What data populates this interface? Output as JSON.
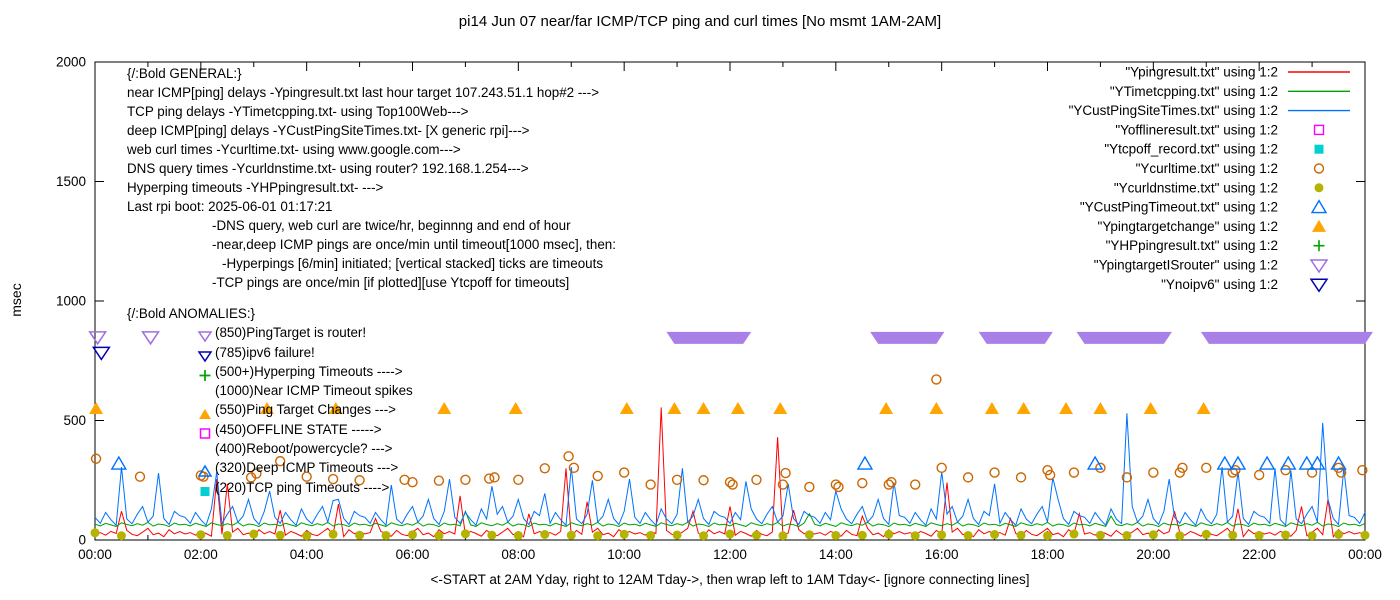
{
  "title": "pi14 Jun 07  near/far ICMP/TCP ping and curl times [No msmt 1AM-2AM]",
  "ylabel": "msec",
  "xlabel": "<-START at 2AM Yday, right to 12AM Tday->, then wrap left to 1AM Tday<- [ignore connecting lines]",
  "axis": {
    "y_ticks": [
      0,
      500,
      1000,
      1500,
      2000
    ],
    "x_tick_labels": [
      "00:00",
      "02:00",
      "04:00",
      "06:00",
      "08:00",
      "10:00",
      "12:00",
      "14:00",
      "16:00",
      "18:00",
      "20:00",
      "22:00",
      "00:00"
    ]
  },
  "legend": [
    {
      "label": "\"Ypingresult.txt\" using 1:2",
      "marker": "line",
      "color": "#ff0000"
    },
    {
      "label": "\"YTimetcpping.txt\" using 1:2",
      "marker": "line",
      "color": "#00a000"
    },
    {
      "label": "\"YCustPingSiteTimes.txt\" using 1:2",
      "marker": "line",
      "color": "#0072ff"
    },
    {
      "label": "\"Yofflineresult.txt\" using 1:2",
      "marker": "square-open",
      "color": "#ff00ff"
    },
    {
      "label": "\"Ytcpoff_record.txt\" using 1:2",
      "marker": "square-filled",
      "color": "#00d0d0"
    },
    {
      "label": "\"Ycurltime.txt\" using 1:2",
      "marker": "circle-open",
      "color": "#cc6600"
    },
    {
      "label": "\"Ycurldnstime.txt\" using 1:2",
      "marker": "circle-filled",
      "color": "#b3b300"
    },
    {
      "label": "\"YCustPingTimeout.txt\" using 1:2",
      "marker": "tri-up-open",
      "color": "#0072ff"
    },
    {
      "label": "\"Ypingtargetchange\" using 1:2",
      "marker": "tri-up-filled",
      "color": "#ffa500"
    },
    {
      "label": "\"YHPpingresult.txt\" using 1:2",
      "marker": "plus",
      "color": "#00a000"
    },
    {
      "label": "\"YpingtargetISrouter\" using 1:2",
      "marker": "tri-down-open",
      "color": "#a06ee0"
    },
    {
      "label": "\"Ynoipv6\" using 1:2",
      "marker": "tri-down-open",
      "color": "#0000b0"
    }
  ],
  "general": {
    "header": "{/:Bold GENERAL:}",
    "lines": [
      {
        "text": "near ICMP[ping] delays -Ypingresult.txt last hour target 107.243.51.1 hop#2 --->",
        "indent": 0
      },
      {
        "text": "TCP ping delays -YTimetcpping.txt- using Top100Web--->",
        "indent": 0
      },
      {
        "text": "deep ICMP[ping] delays -YCustPingSiteTimes.txt- [X generic rpi]--->",
        "indent": 0
      },
      {
        "text": "web curl times -Ycurltime.txt- using www.google.com--->",
        "indent": 0
      },
      {
        "text": "DNS query times -Ycurldnstime.txt- using router? 192.168.1.254--->",
        "indent": 0
      },
      {
        "text": "Hyperping timeouts -YHPpingresult.txt- --->",
        "indent": 0
      },
      {
        "text": "Last rpi boot: 2025-06-01 01:17:21",
        "indent": 0
      },
      {
        "text": "-DNS query, web curl are twice/hr, beginnng and end of hour",
        "indent": 85
      },
      {
        "text": "-near,deep ICMP pings are once/min until timeout[1000 msec], then:",
        "indent": 85
      },
      {
        "text": "-Hyperpings [6/min] initiated; [vertical stacked] ticks are timeouts",
        "indent": 95
      },
      {
        "text": "-TCP pings are once/min [if plotted][use Ytcpoff for timeouts]",
        "indent": 85
      }
    ]
  },
  "anomalies": {
    "header": "{/:Bold ANOMALIES:}",
    "items": [
      {
        "marker": "tri-down-open",
        "color": "#a06ee0",
        "text": "(850)PingTarget is router!"
      },
      {
        "marker": "tri-down-open",
        "color": "#0000b0",
        "text": "(785)ipv6 failure!"
      },
      {
        "marker": "plus",
        "color": "#00a000",
        "text": "(500+)Hyperping Timeouts ---->"
      },
      {
        "marker": null,
        "color": null,
        "text": "(1000)Near ICMP Timeout spikes"
      },
      {
        "marker": "tri-up-filled",
        "color": "#ffa500",
        "text": "(550)Ping Target Changes --->"
      },
      {
        "marker": "square-open",
        "color": "#ff00ff",
        "text": "(450)OFFLINE STATE ----->"
      },
      {
        "marker": null,
        "color": null,
        "text": "(400)Reboot/powercycle? --->"
      },
      {
        "marker": "tri-up-open",
        "color": "#0072ff",
        "text": "(320)Deep ICMP Timeouts --->"
      },
      {
        "marker": "square-filled",
        "color": "#00d0d0",
        "text": "(220)TCP ping Timeouts ---->"
      }
    ]
  },
  "chart_data": {
    "type": "line",
    "title": "pi14 Jun 07  near/far ICMP/TCP ping and curl times [No msmt 1AM-2AM]",
    "xlabel": "<-START at 2AM Yday, right to 12AM Tday->, then wrap left to 1AM Tday<- [ignore connecting lines]",
    "ylabel": "msec",
    "ylim": [
      0,
      2000
    ],
    "xlim_hours": [
      0,
      24
    ],
    "grid": false,
    "legend_position": "top-right",
    "lines": [
      {
        "name": "Ypingresult.txt",
        "color": "#ff0000",
        "dt": 0.1,
        "base": 22,
        "noise": [
          3,
          9,
          -2,
          14,
          5,
          -6,
          18,
          2,
          -4,
          11,
          27,
          0,
          7,
          -8,
          21,
          4,
          13
        ],
        "spikes": [
          [
            0.5,
            120
          ],
          [
            2.3,
            255
          ],
          [
            2.45,
            235
          ],
          [
            3.5,
            125
          ],
          [
            4.6,
            150
          ],
          [
            5.3,
            90
          ],
          [
            6.9,
            185
          ],
          [
            8.2,
            110
          ],
          [
            8.9,
            300
          ],
          [
            9.35,
            160
          ],
          [
            10.7,
            555
          ],
          [
            11.3,
            120
          ],
          [
            12.0,
            140
          ],
          [
            12.95,
            430
          ],
          [
            13.2,
            125
          ],
          [
            14.5,
            100
          ],
          [
            16.1,
            240
          ],
          [
            17.3,
            90
          ],
          [
            18.6,
            110
          ],
          [
            20.4,
            120
          ],
          [
            21.6,
            130
          ],
          [
            22.8,
            140
          ],
          [
            23.3,
            170
          ]
        ]
      },
      {
        "name": "YTimetcpping.txt",
        "color": "#00a000",
        "dt": 0.1,
        "base": 62,
        "noise": [
          4,
          -3,
          8,
          1,
          -5,
          10,
          3,
          -2,
          6,
          0,
          12,
          -4,
          5,
          2,
          -6,
          9,
          1
        ],
        "spikes": [
          [
            7.0,
            120
          ],
          [
            13.5,
            110
          ],
          [
            19.2,
            100
          ]
        ]
      },
      {
        "name": "YCustPingSiteTimes.txt",
        "color": "#0072ff",
        "dt": 0.1,
        "base": 80,
        "noise": [
          15,
          -10,
          35,
          5,
          -18,
          50,
          8,
          -12,
          28,
          60,
          -5,
          20,
          90,
          10,
          -15,
          40,
          22
        ],
        "spikes": [
          [
            0.5,
            305
          ],
          [
            1.2,
            280
          ],
          [
            2.3,
            285
          ],
          [
            3.3,
            205
          ],
          [
            4.5,
            165
          ],
          [
            5.6,
            230
          ],
          [
            6.65,
            255
          ],
          [
            7.5,
            225
          ],
          [
            8.5,
            195
          ],
          [
            9.0,
            305
          ],
          [
            9.4,
            250
          ],
          [
            10.1,
            255
          ],
          [
            11.1,
            300
          ],
          [
            12.3,
            245
          ],
          [
            13.1,
            235
          ],
          [
            14.0,
            205
          ],
          [
            15.1,
            240
          ],
          [
            16.0,
            285
          ],
          [
            17.0,
            235
          ],
          [
            18.05,
            260
          ],
          [
            19.5,
            530
          ],
          [
            20.3,
            255
          ],
          [
            21.3,
            305
          ],
          [
            21.55,
            285
          ],
          [
            22.3,
            300
          ],
          [
            22.65,
            290
          ],
          [
            23.2,
            490
          ],
          [
            23.55,
            300
          ]
        ]
      }
    ],
    "points": [
      {
        "name": "Ycurltime.txt",
        "marker": "circle-open",
        "color": "#cc6600",
        "data": [
          [
            0.02,
            340
          ],
          [
            0.85,
            265
          ],
          [
            2.0,
            270
          ],
          [
            2.05,
            265
          ],
          [
            2.95,
            262
          ],
          [
            3.05,
            278
          ],
          [
            3.5,
            330
          ],
          [
            4.0,
            265
          ],
          [
            4.5,
            255
          ],
          [
            5.0,
            250
          ],
          [
            5.85,
            252
          ],
          [
            6.0,
            242
          ],
          [
            6.5,
            248
          ],
          [
            7.0,
            252
          ],
          [
            7.45,
            257
          ],
          [
            7.55,
            262
          ],
          [
            8.0,
            252
          ],
          [
            8.5,
            300
          ],
          [
            8.95,
            350
          ],
          [
            9.05,
            302
          ],
          [
            9.5,
            268
          ],
          [
            10.0,
            282
          ],
          [
            10.5,
            232
          ],
          [
            11.0,
            252
          ],
          [
            11.5,
            250
          ],
          [
            12.0,
            242
          ],
          [
            12.05,
            232
          ],
          [
            12.5,
            252
          ],
          [
            13.0,
            232
          ],
          [
            13.05,
            280
          ],
          [
            13.5,
            222
          ],
          [
            14.0,
            232
          ],
          [
            14.05,
            222
          ],
          [
            14.5,
            238
          ],
          [
            15.0,
            232
          ],
          [
            15.05,
            242
          ],
          [
            15.5,
            232
          ],
          [
            15.9,
            672
          ],
          [
            16.0,
            302
          ],
          [
            16.5,
            262
          ],
          [
            17.0,
            282
          ],
          [
            17.5,
            262
          ],
          [
            18.0,
            292
          ],
          [
            18.05,
            272
          ],
          [
            18.5,
            282
          ],
          [
            19.0,
            302
          ],
          [
            19.5,
            262
          ],
          [
            20.0,
            282
          ],
          [
            20.5,
            282
          ],
          [
            20.55,
            302
          ],
          [
            21.0,
            302
          ],
          [
            21.5,
            282
          ],
          [
            21.55,
            292
          ],
          [
            22.0,
            272
          ],
          [
            22.5,
            292
          ],
          [
            23.0,
            282
          ],
          [
            23.5,
            302
          ],
          [
            23.55,
            282
          ],
          [
            23.95,
            292
          ]
        ]
      },
      {
        "name": "Ycurldnstime.txt",
        "marker": "circle-filled",
        "color": "#b3b300",
        "hours": [
          0,
          0.5,
          2,
          2.5,
          3,
          3.5,
          4,
          4.5,
          5,
          5.5,
          6,
          6.5,
          7,
          7.5,
          8,
          8.5,
          9,
          9.5,
          10,
          10.5,
          11,
          11.5,
          12,
          12.5,
          13,
          13.5,
          14,
          14.5,
          15,
          15.5,
          16,
          16.5,
          17,
          17.5,
          18,
          18.5,
          19,
          19.5,
          20,
          20.5,
          21,
          21.5,
          22,
          22.5,
          23,
          23.5,
          24
        ],
        "values": [
          30,
          18,
          22,
          19,
          25,
          20,
          18,
          24,
          20,
          19,
          22,
          18,
          26,
          20,
          19,
          23,
          20,
          18,
          24,
          19,
          21,
          18,
          25,
          20,
          18,
          22,
          19,
          20,
          24,
          18,
          21,
          19,
          23,
          20,
          18,
          25,
          20,
          19,
          22,
          18,
          24,
          20,
          19,
          21,
          18,
          23,
          20
        ]
      },
      {
        "name": "Ypingtargetchange",
        "marker": "tri-up-filled",
        "color": "#ffa500",
        "value": 550,
        "times": [
          0.02,
          3.25,
          4.55,
          6.6,
          7.95,
          10.05,
          10.95,
          11.5,
          12.15,
          12.95,
          14.95,
          15.9,
          16.95,
          17.55,
          18.35,
          19.0,
          19.95,
          20.95
        ]
      },
      {
        "name": "YCustPingTimeout.txt",
        "marker": "tri-up-open",
        "color": "#0072ff",
        "value": 320,
        "times": [
          0.45,
          14.55,
          18.9,
          21.35,
          21.6,
          22.15,
          22.55,
          22.9,
          23.1,
          23.5
        ]
      },
      {
        "name": "Ynoipv6",
        "marker": "tri-down-open",
        "color": "#0000b0",
        "value": 785,
        "times": [
          0.12
        ]
      },
      {
        "name": "YpingtargetISrouter",
        "marker": "tri-down-open",
        "color": "#a06ee0",
        "value": 850,
        "times": [
          0.05,
          1.05
        ],
        "bands": [
          [
            10.95,
            12.25
          ],
          [
            14.8,
            15.9
          ],
          [
            16.85,
            17.95
          ],
          [
            18.7,
            20.2
          ],
          [
            21.05,
            24.0
          ]
        ]
      }
    ]
  }
}
